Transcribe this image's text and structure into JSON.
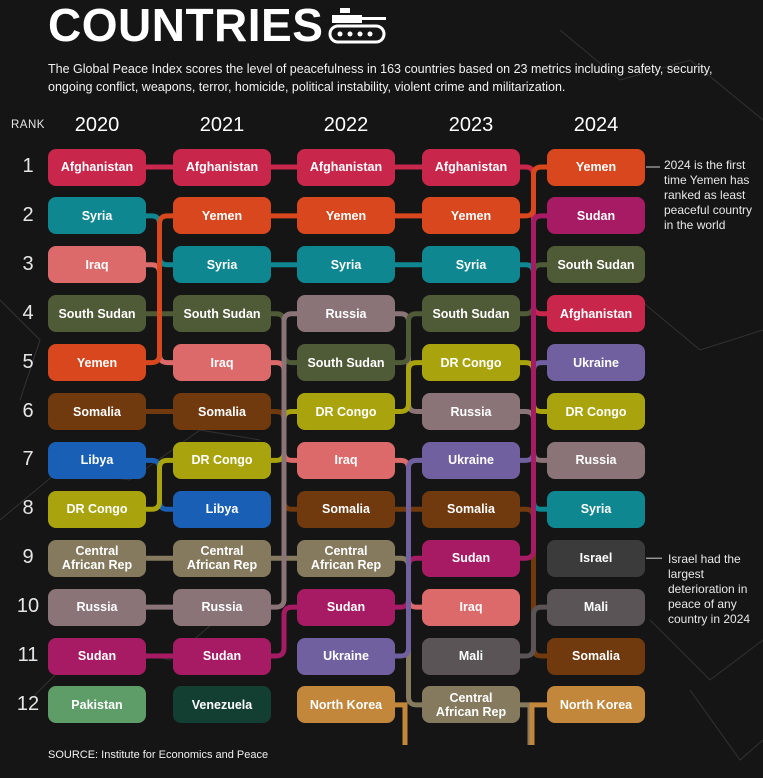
{
  "title": "COUNTRIES",
  "subtitle": "The Global Peace Index scores the level of peacefulness in 163 countries based on 23 metrics including safety, security, ongoing conflict, weapons, terror, homicide, political instability, violent crime and militarization.",
  "rank_label": "RANK",
  "source": "SOURCE: Institute for Economics and Peace",
  "chart_data": {
    "type": "table",
    "years": [
      "2020",
      "2021",
      "2022",
      "2023",
      "2024"
    ],
    "ranks": [
      "1",
      "2",
      "3",
      "4",
      "5",
      "6",
      "7",
      "8",
      "9",
      "10",
      "11",
      "12"
    ],
    "rankings": {
      "2020": [
        "Afghanistan",
        "Syria",
        "Iraq",
        "South Sudan",
        "Yemen",
        "Somalia",
        "Libya",
        "DR Congo",
        "Central\nAfrican Rep",
        "Russia",
        "Sudan",
        "Pakistan"
      ],
      "2021": [
        "Afghanistan",
        "Yemen",
        "Syria",
        "South Sudan",
        "Iraq",
        "Somalia",
        "DR Congo",
        "Libya",
        "Central\nAfrican Rep",
        "Russia",
        "Sudan",
        "Venezuela"
      ],
      "2022": [
        "Afghanistan",
        "Yemen",
        "Syria",
        "Russia",
        "South Sudan",
        "DR Congo",
        "Iraq",
        "Somalia",
        "Central\nAfrican Rep",
        "Sudan",
        "Ukraine",
        "North Korea"
      ],
      "2023": [
        "Afghanistan",
        "Yemen",
        "Syria",
        "South Sudan",
        "DR Congo",
        "Russia",
        "Ukraine",
        "Somalia",
        "Sudan",
        "Iraq",
        "Mali",
        "Central\nAfrican Rep"
      ],
      "2024": [
        "Yemen",
        "Sudan",
        "South Sudan",
        "Afghanistan",
        "Ukraine",
        "DR Congo",
        "Russia",
        "Syria",
        "Israel",
        "Mali",
        "Somalia",
        "North Korea"
      ]
    },
    "annotations": [
      {
        "year": "2024",
        "rank": 1,
        "text": "2024 is the first time Yemen has ranked as least peaceful country in the world"
      },
      {
        "year": "2024",
        "rank": 9,
        "text": "Israel had the largest deterioration in peace of any country in 2024"
      }
    ]
  },
  "colors": {
    "Afghanistan": "#c8264a",
    "Syria": "#0e8791",
    "Iraq": "#dc6a6a",
    "South Sudan": "#4f5a37",
    "Yemen": "#d9471e",
    "Somalia": "#70390e",
    "Libya": "#1a5fb6",
    "DR Congo": "#a9a40e",
    "Central\nAfrican Rep": "#857a5e",
    "Russia": "#8b7478",
    "Sudan": "#a61b63",
    "Pakistan": "#5e9c68",
    "Venezuela": "#133f32",
    "Ukraine": "#7060a0",
    "North Korea": "#c3873c",
    "Mali": "#5a5456",
    "Israel": "#3b3b3b"
  }
}
